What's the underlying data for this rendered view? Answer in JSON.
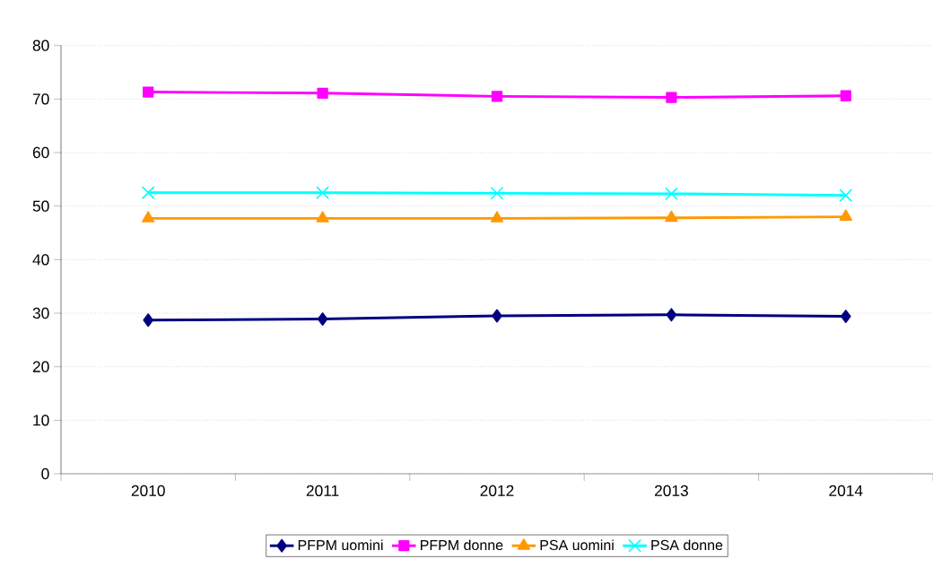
{
  "chart_data": {
    "type": "line",
    "categories": [
      "2010",
      "2011",
      "2012",
      "2013",
      "2014"
    ],
    "series": [
      {
        "name": "PFPM uomini",
        "color": "#000080",
        "marker": "diamond",
        "values": [
          28.7,
          28.9,
          29.5,
          29.7,
          29.4
        ]
      },
      {
        "name": "PFPM donne",
        "color": "#ff00ff",
        "marker": "square",
        "values": [
          71.3,
          71.1,
          70.5,
          70.3,
          70.6
        ]
      },
      {
        "name": "PSA uomini",
        "color": "#ff9900",
        "marker": "triangle",
        "values": [
          47.7,
          47.7,
          47.7,
          47.8,
          48.0
        ]
      },
      {
        "name": "PSA donne",
        "color": "#00ffff",
        "marker": "cross",
        "values": [
          52.5,
          52.5,
          52.4,
          52.3,
          52.0
        ]
      }
    ],
    "ylim": [
      0,
      80
    ],
    "yticks": [
      0,
      10,
      20,
      30,
      40,
      50,
      60,
      70,
      80
    ],
    "grid": "y",
    "legend": "bottom",
    "line_style": "solid"
  }
}
